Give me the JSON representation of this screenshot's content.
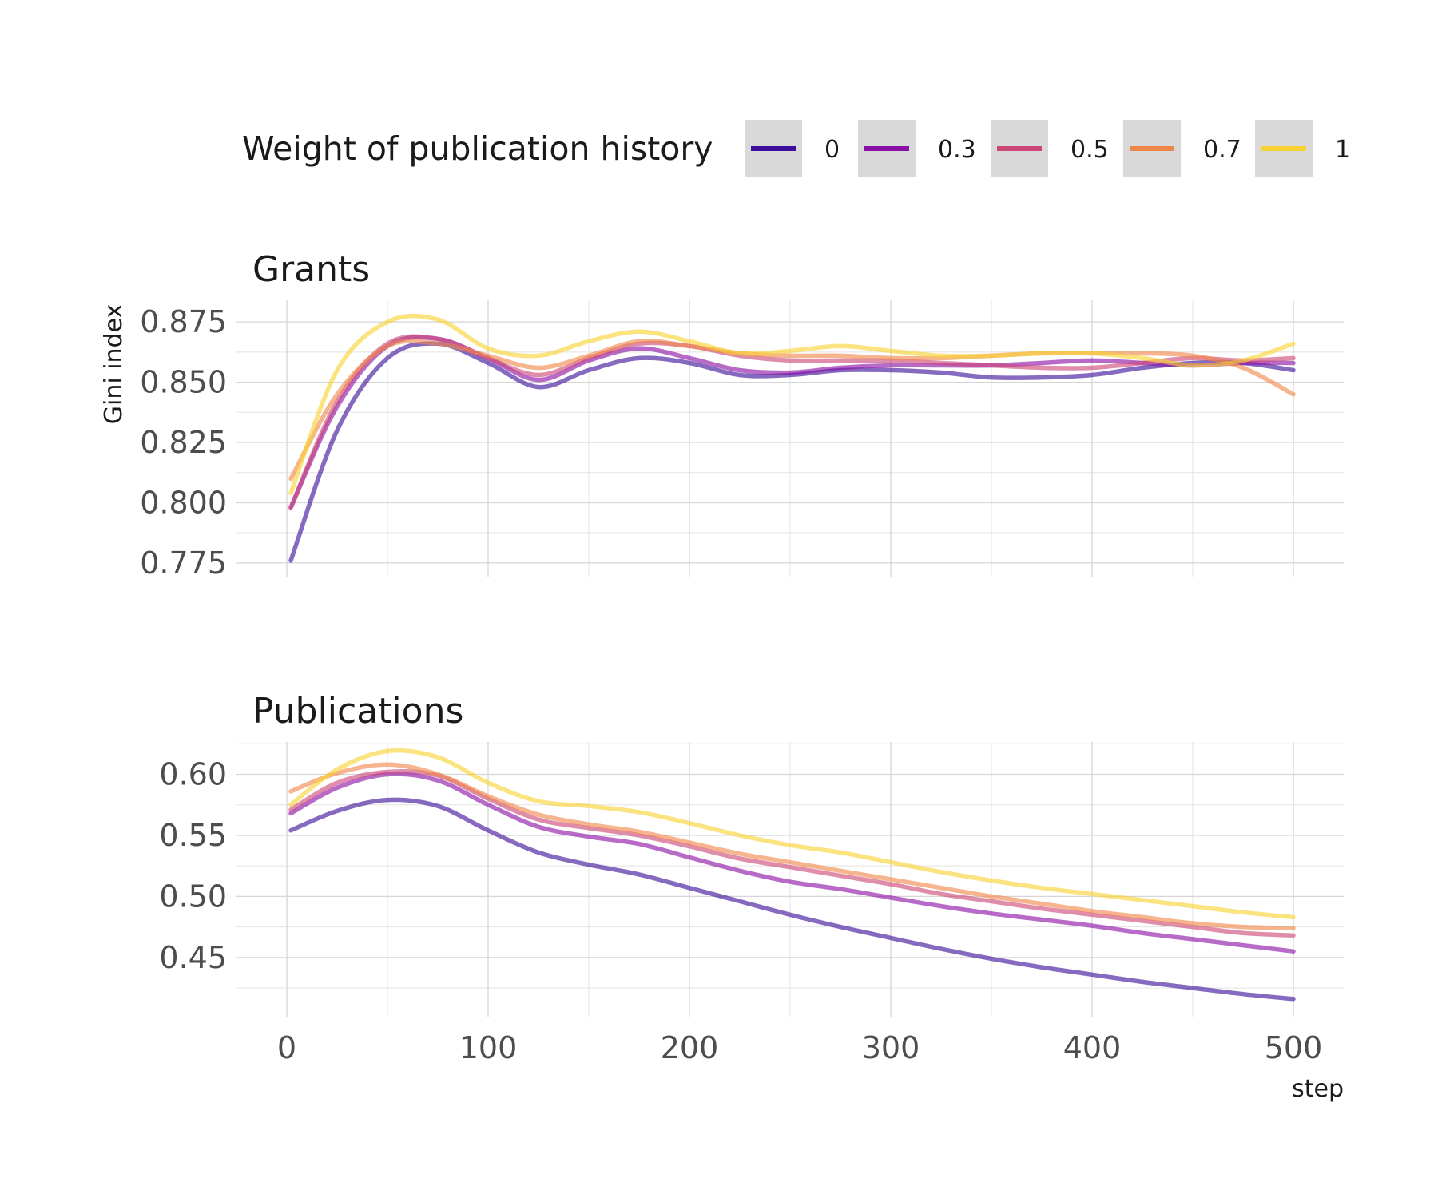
{
  "legend": {
    "title": "Weight of publication history",
    "items": [
      {
        "label": "0",
        "color": "#3b0f9a"
      },
      {
        "label": "0.3",
        "color": "#8b10a5"
      },
      {
        "label": "0.5",
        "color": "#cc4778"
      },
      {
        "label": "0.7",
        "color": "#f0874a"
      },
      {
        "label": "1",
        "color": "#f8d232"
      }
    ]
  },
  "axes": {
    "ylabel": "Gini index",
    "xlabel": "step"
  },
  "chart_data": [
    {
      "type": "line",
      "title": "Grants",
      "xlabel": "step",
      "ylabel": "Gini index",
      "xlim": [
        -25,
        525
      ],
      "ylim": [
        0.769,
        0.884
      ],
      "x_ticks": [
        0,
        100,
        200,
        300,
        400,
        500
      ],
      "x_tick_labels": [
        "0",
        "100",
        "200",
        "300",
        "400",
        "500"
      ],
      "y_ticks": [
        0.775,
        0.8,
        0.825,
        0.85,
        0.875
      ],
      "y_tick_labels": [
        "0.775",
        "0.800",
        "0.825",
        "0.850",
        "0.875"
      ],
      "grid": true,
      "x": [
        2,
        25,
        50,
        75,
        100,
        125,
        150,
        175,
        200,
        225,
        250,
        275,
        300,
        325,
        350,
        375,
        400,
        425,
        450,
        475,
        500
      ],
      "series": [
        {
          "name": "0",
          "values": [
            0.776,
            0.83,
            0.86,
            0.866,
            0.858,
            0.848,
            0.855,
            0.86,
            0.858,
            0.853,
            0.853,
            0.855,
            0.855,
            0.854,
            0.852,
            0.852,
            0.853,
            0.856,
            0.858,
            0.858,
            0.855
          ]
        },
        {
          "name": "0.3",
          "values": [
            0.798,
            0.84,
            0.865,
            0.868,
            0.86,
            0.851,
            0.859,
            0.864,
            0.86,
            0.855,
            0.854,
            0.856,
            0.857,
            0.857,
            0.857,
            0.858,
            0.859,
            0.858,
            0.857,
            0.858,
            0.858
          ]
        },
        {
          "name": "0.5",
          "values": [
            0.798,
            0.842,
            0.866,
            0.868,
            0.86,
            0.853,
            0.86,
            0.866,
            0.865,
            0.861,
            0.859,
            0.859,
            0.859,
            0.858,
            0.857,
            0.856,
            0.856,
            0.858,
            0.86,
            0.859,
            0.86
          ]
        },
        {
          "name": "0.7",
          "values": [
            0.81,
            0.845,
            0.865,
            0.866,
            0.861,
            0.856,
            0.861,
            0.867,
            0.865,
            0.862,
            0.861,
            0.861,
            0.86,
            0.86,
            0.861,
            0.862,
            0.862,
            0.862,
            0.861,
            0.856,
            0.845
          ]
        },
        {
          "name": "1",
          "values": [
            0.804,
            0.855,
            0.875,
            0.876,
            0.864,
            0.861,
            0.867,
            0.871,
            0.867,
            0.862,
            0.863,
            0.865,
            0.863,
            0.861,
            0.861,
            0.862,
            0.862,
            0.86,
            0.857,
            0.859,
            0.866
          ]
        }
      ]
    },
    {
      "type": "line",
      "title": "Publications",
      "xlabel": "step",
      "ylabel": "Gini index",
      "xlim": [
        -25,
        525
      ],
      "ylim": [
        0.4015,
        0.6265
      ],
      "x_ticks": [
        0,
        100,
        200,
        300,
        400,
        500
      ],
      "x_tick_labels": [
        "0",
        "100",
        "200",
        "300",
        "400",
        "500"
      ],
      "y_ticks": [
        0.45,
        0.5,
        0.55,
        0.6
      ],
      "y_tick_labels": [
        "0.45",
        "0.50",
        "0.55",
        "0.60"
      ],
      "grid": true,
      "x": [
        2,
        25,
        50,
        75,
        100,
        125,
        150,
        175,
        200,
        225,
        250,
        275,
        300,
        325,
        350,
        375,
        400,
        425,
        450,
        475,
        500
      ],
      "series": [
        {
          "name": "0",
          "values": [
            0.554,
            0.57,
            0.579,
            0.574,
            0.554,
            0.536,
            0.526,
            0.518,
            0.507,
            0.496,
            0.485,
            0.475,
            0.466,
            0.457,
            0.449,
            0.442,
            0.436,
            0.43,
            0.425,
            0.42,
            0.416
          ]
        },
        {
          "name": "0.3",
          "values": [
            0.568,
            0.589,
            0.6,
            0.595,
            0.575,
            0.557,
            0.549,
            0.543,
            0.532,
            0.521,
            0.512,
            0.506,
            0.499,
            0.492,
            0.486,
            0.481,
            0.476,
            0.47,
            0.465,
            0.46,
            0.455
          ]
        },
        {
          "name": "0.5",
          "values": [
            0.571,
            0.593,
            0.602,
            0.599,
            0.58,
            0.563,
            0.556,
            0.55,
            0.541,
            0.531,
            0.524,
            0.517,
            0.51,
            0.502,
            0.496,
            0.49,
            0.485,
            0.48,
            0.475,
            0.47,
            0.468
          ]
        },
        {
          "name": "0.7",
          "values": [
            0.586,
            0.601,
            0.608,
            0.6,
            0.582,
            0.567,
            0.559,
            0.553,
            0.544,
            0.535,
            0.528,
            0.521,
            0.514,
            0.507,
            0.5,
            0.494,
            0.488,
            0.483,
            0.478,
            0.475,
            0.474
          ]
        },
        {
          "name": "1",
          "values": [
            0.575,
            0.604,
            0.619,
            0.614,
            0.593,
            0.578,
            0.574,
            0.569,
            0.56,
            0.55,
            0.542,
            0.536,
            0.528,
            0.52,
            0.513,
            0.507,
            0.502,
            0.497,
            0.492,
            0.487,
            0.483
          ]
        }
      ]
    }
  ]
}
